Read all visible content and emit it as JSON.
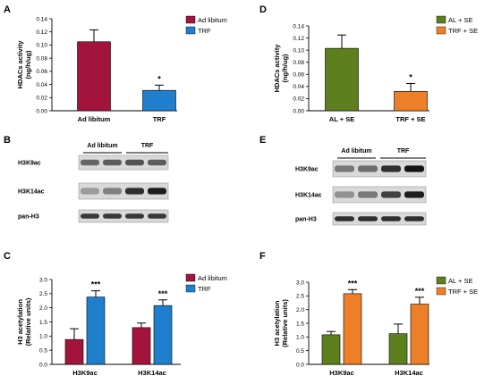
{
  "panel_labels": {
    "A": "A",
    "B": "B",
    "C": "C",
    "D": "D",
    "E": "E",
    "F": "F"
  },
  "colors": {
    "crimson": "#a3143c",
    "blue": "#1f7fcd",
    "olive": "#5e7f1e",
    "orange": "#ec7f28"
  },
  "chart_data": [
    {
      "panel": "A",
      "type": "bar",
      "categories": [
        "Ad libitum",
        "TRF"
      ],
      "values": [
        0.105,
        0.031
      ],
      "errors": [
        0.018,
        0.008
      ],
      "significance": [
        "",
        "*"
      ],
      "ylabel": [
        "HDACs activity",
        "(ng/h/ug)"
      ],
      "ylim": [
        0,
        0.14
      ],
      "yticks": [
        "0.00",
        "0.02",
        "0.04",
        "0.06",
        "0.08",
        "0.10",
        "0.12",
        "0.14"
      ],
      "legend": [
        "Ad libitum",
        "TRF"
      ],
      "colors": [
        "#a3143c",
        "#1f7fcd"
      ],
      "legend_position": "top-right",
      "grid": false
    },
    {
      "panel": "D",
      "type": "bar",
      "categories": [
        "AL + SE",
        "TRF + SE"
      ],
      "values": [
        0.103,
        0.032
      ],
      "errors": [
        0.022,
        0.013
      ],
      "significance": [
        "",
        "*"
      ],
      "ylabel": [
        "HDACs activity",
        "(ng/h/ug)"
      ],
      "ylim": [
        0,
        0.14
      ],
      "yticks": [
        "0.00",
        "0.02",
        "0.04",
        "0.06",
        "0.08",
        "0.10",
        "0.12",
        "0.14"
      ],
      "legend": [
        "AL + SE",
        "TRF + SE"
      ],
      "colors": [
        "#5e7f1e",
        "#ec7f28"
      ],
      "legend_position": "top-right",
      "grid": false
    },
    {
      "panel": "C",
      "type": "bar",
      "categories": [
        "H3K9ac",
        "H3K14ac"
      ],
      "series": [
        {
          "name": "Ad libitum",
          "values": [
            0.88,
            1.3
          ],
          "errors": [
            0.38,
            0.16
          ],
          "significance": [
            "",
            ""
          ]
        },
        {
          "name": "TRF",
          "values": [
            2.38,
            2.08
          ],
          "errors": [
            0.22,
            0.2
          ],
          "significance": [
            "***",
            "***"
          ]
        }
      ],
      "ylabel": [
        "H3 acetylation",
        "(Relative units)"
      ],
      "ylim": [
        0,
        3.0
      ],
      "yticks": [
        "0.0",
        "0.5",
        "1.0",
        "1.5",
        "2.0",
        "2.5",
        "3.0"
      ],
      "colors": [
        "#a3143c",
        "#1f7fcd"
      ],
      "legend_position": "top-right",
      "grid": false
    },
    {
      "panel": "F",
      "type": "bar",
      "categories": [
        "H3K9ac",
        "H3K14ac"
      ],
      "series": [
        {
          "name": "AL + SE",
          "values": [
            1.08,
            1.12
          ],
          "errors": [
            0.12,
            0.35
          ],
          "significance": [
            "",
            ""
          ]
        },
        {
          "name": "TRF + SE",
          "values": [
            2.58,
            2.2
          ],
          "errors": [
            0.15,
            0.25
          ],
          "significance": [
            "***",
            "***"
          ]
        }
      ],
      "ylabel": [
        "H3 acetylation",
        "(Relative units)"
      ],
      "ylim": [
        0,
        3.0
      ],
      "yticks": [
        "0.0",
        "0.5",
        "1.0",
        "1.5",
        "2.0",
        "2.5",
        "3.0"
      ],
      "colors": [
        "#5e7f1e",
        "#ec7f28"
      ],
      "legend_position": "top-right",
      "grid": false
    }
  ],
  "blots": [
    {
      "panel": "B",
      "groups": [
        "Ad libitum",
        "TRF"
      ],
      "rows": [
        "H3K9ac",
        "H3K14ac",
        "pan-H3"
      ],
      "intensity": [
        [
          0.55,
          0.6,
          0.65,
          0.6
        ],
        [
          0.25,
          0.4,
          0.85,
          0.95
        ],
        [
          0.8,
          0.8,
          0.8,
          0.8
        ]
      ]
    },
    {
      "panel": "E",
      "groups": [
        "Ad libitum",
        "TRF"
      ],
      "rows": [
        "H3K9ac",
        "H3K14ac",
        "pan-H3"
      ],
      "intensity": [
        [
          0.45,
          0.5,
          0.85,
          1.0
        ],
        [
          0.3,
          0.45,
          0.75,
          0.95
        ],
        [
          0.85,
          0.85,
          0.85,
          0.85
        ]
      ]
    }
  ]
}
